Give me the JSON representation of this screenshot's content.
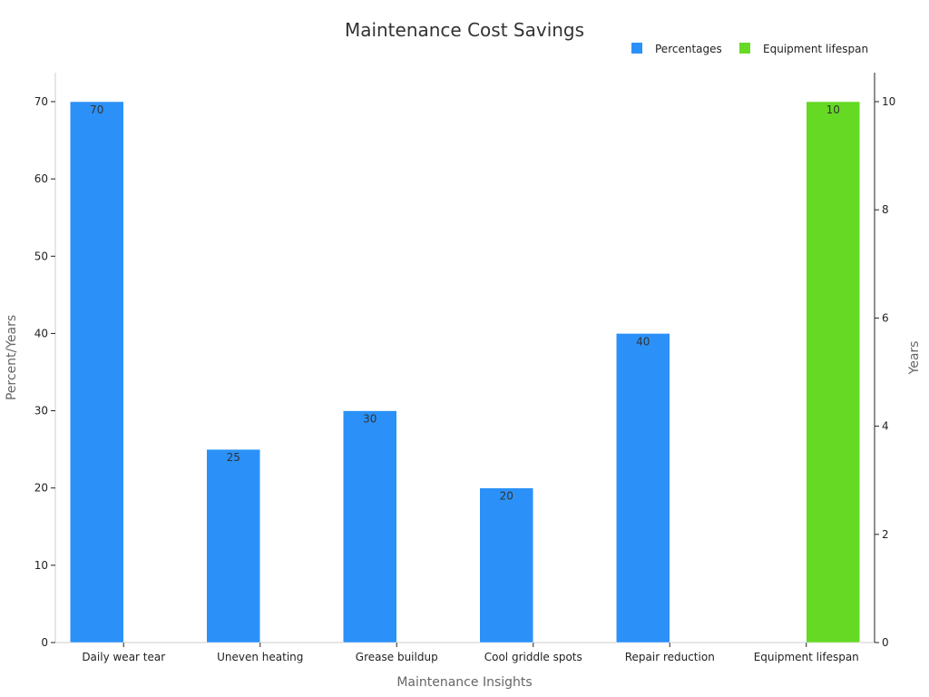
{
  "chart_data": {
    "type": "bar",
    "title": "Maintenance Cost Savings",
    "xlabel": "Maintenance Insights",
    "ylabel": "Percent/Years",
    "y2label": "Years",
    "categories": [
      "Daily wear tear",
      "Uneven heating",
      "Grease buildup",
      "Cool griddle spots",
      "Repair reduction",
      "Equipment lifespan"
    ],
    "series": [
      {
        "name": "Percentages",
        "axis": "left",
        "color": "#2b91f8",
        "values": [
          70,
          25,
          30,
          20,
          40,
          null
        ]
      },
      {
        "name": "Equipment lifespan",
        "axis": "right",
        "color": "#66d925",
        "values": [
          null,
          null,
          null,
          null,
          null,
          10
        ]
      }
    ],
    "ylim": [
      0,
      70
    ],
    "yticks": [
      0,
      10,
      20,
      30,
      40,
      50,
      60,
      70
    ],
    "y2lim": [
      0,
      10
    ],
    "y2ticks": [
      0,
      2,
      4,
      6,
      8,
      10
    ],
    "legend_position": "top-right",
    "grid": false
  }
}
